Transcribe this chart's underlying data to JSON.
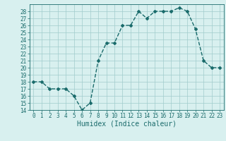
{
  "x": [
    0,
    1,
    2,
    3,
    4,
    5,
    6,
    7,
    8,
    9,
    10,
    11,
    12,
    13,
    14,
    15,
    16,
    17,
    18,
    19,
    20,
    21,
    22,
    23
  ],
  "y": [
    18,
    18,
    17,
    17,
    17,
    16,
    14,
    15,
    21,
    23.5,
    23.5,
    26,
    26,
    28,
    27,
    28,
    28,
    28,
    28.5,
    28,
    25.5,
    21,
    20,
    20
  ],
  "line_color": "#1a6b6b",
  "marker": "D",
  "marker_size": 2,
  "linewidth": 1.0,
  "bg_color": "#d8f0ef",
  "grid_color": "#a0cccc",
  "xlabel": "Humidex (Indice chaleur)",
  "xlabel_fontsize": 7,
  "tick_fontsize": 5.5,
  "ylim": [
    14,
    29
  ],
  "xlim": [
    -0.5,
    23.5
  ],
  "yticks": [
    14,
    15,
    16,
    17,
    18,
    19,
    20,
    21,
    22,
    23,
    24,
    25,
    26,
    27,
    28
  ],
  "xticks": [
    0,
    1,
    2,
    3,
    4,
    5,
    6,
    7,
    8,
    9,
    10,
    11,
    12,
    13,
    14,
    15,
    16,
    17,
    18,
    19,
    20,
    21,
    22,
    23
  ]
}
